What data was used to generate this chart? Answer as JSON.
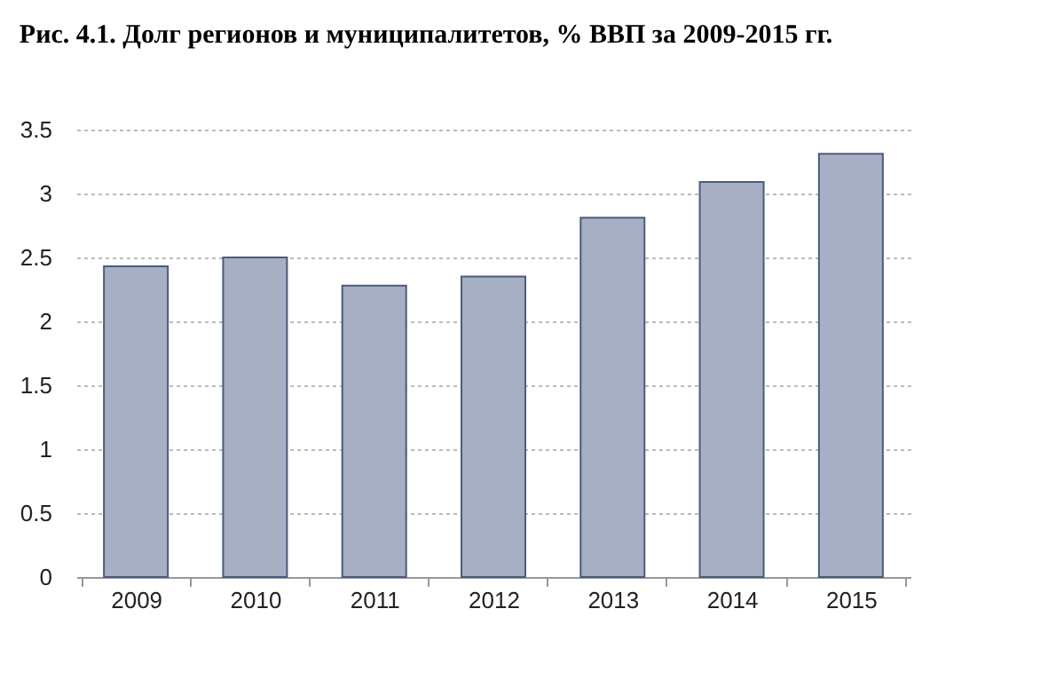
{
  "chart_data": {
    "type": "bar",
    "title": "Рис. 4.1. Долг регионов и муниципалитетов, % ВВП за 2009-2015 гг.",
    "categories": [
      "2009",
      "2010",
      "2011",
      "2012",
      "2013",
      "2014",
      "2015"
    ],
    "values": [
      2.43,
      2.5,
      2.28,
      2.35,
      2.81,
      3.09,
      3.31
    ],
    "color": "#a7afc5",
    "ylim": [
      0,
      3.5
    ],
    "yticks": [
      0,
      0.5,
      1,
      1.5,
      2,
      2.5,
      3,
      3.5
    ],
    "grid": "y"
  }
}
